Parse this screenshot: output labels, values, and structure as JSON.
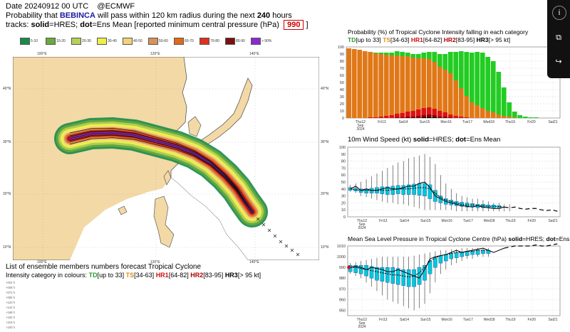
{
  "header": {
    "date_line": "Date 20240912 00 UTC",
    "source": "@ECMWF",
    "prob_prefix": "Probability that",
    "storm_name": "BEBINCA",
    "prob_mid": "will pass within 120 km radius during the next",
    "hours": "240",
    "hours_suffix": "hours",
    "tracks_prefix": "tracks:",
    "solid_label": "solid",
    "solid_def": "=HRES;",
    "dot_label": "dot",
    "dot_def": "=Ens Mean [reported minimum central pressure (hPa)",
    "pressure": "990",
    "close_bracket": "]"
  },
  "prob_legend": [
    {
      "label": "5-10",
      "color": "#1a8a4a"
    },
    {
      "label": "10-20",
      "color": "#6aaa3a"
    },
    {
      "label": "20-30",
      "color": "#b6d05a"
    },
    {
      "label": "30-40",
      "color": "#eef04a"
    },
    {
      "label": "40-50",
      "color": "#f3d27a"
    },
    {
      "label": "50-60",
      "color": "#d9925a"
    },
    {
      "label": "60-70",
      "color": "#e06a1a"
    },
    {
      "label": "70-80",
      "color": "#e03020"
    },
    {
      "label": "80-90",
      "color": "#7a1010"
    },
    {
      "label": "> 90%",
      "color": "#8a2ad0"
    }
  ],
  "map": {
    "lat_labels": [
      "40°N",
      "30°N",
      "20°N",
      "10°N"
    ],
    "lon_labels": [
      "100°E",
      "120°E",
      "140°E"
    ],
    "colors": {
      "sea": "#ffffff",
      "land": "#f2d9a6",
      "coast": "#444444"
    }
  },
  "ensemble_table": {
    "title": "List of ensemble members numbers forecast Tropical Cyclone",
    "legend_prefix": "Intensity category in colours:",
    "categories": [
      {
        "code": "TD",
        "desc": "[up to 33]",
        "color": "#2a9d2a"
      },
      {
        "code": "TS",
        "desc": "[34-63]",
        "color": "#e08a1e"
      },
      {
        "code": "HR1",
        "desc": "[64-82]",
        "color": "#cc1111"
      },
      {
        "code": "HR2",
        "desc": "[83-95]",
        "color": "#b00000"
      },
      {
        "code": "HR3",
        "desc": "[> 95 kt]",
        "color": "#000000"
      }
    ],
    "row_labels": [
      "+024 h",
      "+048 h",
      "+072 h",
      "+096 h",
      "+120 h",
      "+144 h",
      "+168 h",
      "+192 h",
      "+216 h",
      "+240 h"
    ]
  },
  "sidebar": {
    "info_icon": "i",
    "copy_icon": "⧉",
    "share_icon": "↪"
  },
  "chart_data": [
    {
      "type": "bar",
      "title_parts": {
        "prefix": "Probability (%) of Tropical Cyclone Intensity falling in each category",
        "td": "TD",
        "td_desc": "[up to 33]",
        "ts": "TS",
        "ts_desc": "[34-63]",
        "hr1": "HR1",
        "hr1_desc": "[64-82]",
        "hr2": "HR2",
        "hr2_desc": "[83-95]",
        "hr3": "HR3",
        "hr3_desc": "[> 95 kt]"
      },
      "x_tick_labels": [
        "Thu12 Sep 2024",
        "Fri13",
        "Sat14",
        "Sun15",
        "Mon16",
        "Tue17",
        "Wed18",
        "Thu19",
        "Fri20",
        "Sat21"
      ],
      "ylim": [
        0,
        100
      ],
      "y_ticks": [
        0,
        10,
        20,
        30,
        40,
        50,
        60,
        70,
        80,
        90,
        100
      ],
      "n_steps": 40,
      "colors": {
        "TD": "#22cc22",
        "TS": "#e07818",
        "HR1": "#dd1111",
        "HR2": "#880000",
        "HR3": "#000000"
      },
      "series": [
        {
          "name": "TD",
          "values": [
            0,
            0,
            0,
            0,
            0,
            1,
            2,
            3,
            4,
            6,
            6,
            5,
            5,
            6,
            8,
            10,
            14,
            18,
            22,
            30,
            40,
            52,
            62,
            70,
            75,
            78,
            76,
            72,
            60,
            40,
            20,
            8,
            4,
            2,
            1,
            1,
            0,
            0,
            0,
            0
          ]
        },
        {
          "name": "TS",
          "values": [
            98,
            97,
            96,
            94,
            92,
            90,
            88,
            86,
            84,
            82,
            80,
            78,
            75,
            72,
            70,
            68,
            66,
            62,
            60,
            58,
            50,
            40,
            30,
            22,
            18,
            14,
            10,
            8,
            5,
            3,
            2,
            1,
            0,
            0,
            0,
            0,
            0,
            0,
            0,
            0
          ]
        },
        {
          "name": "HR1",
          "values": [
            0,
            0,
            0,
            0,
            1,
            1,
            2,
            3,
            4,
            5,
            6,
            7,
            8,
            9,
            10,
            10,
            9,
            8,
            6,
            4,
            3,
            2,
            1,
            0,
            0,
            0,
            0,
            0,
            0,
            0,
            0,
            0,
            0,
            0,
            0,
            0,
            0,
            0,
            0,
            0
          ]
        },
        {
          "name": "HR2",
          "values": [
            0,
            0,
            0,
            0,
            0,
            0,
            0,
            0,
            0,
            1,
            1,
            2,
            2,
            3,
            3,
            4,
            3,
            2,
            2,
            1,
            0,
            0,
            0,
            0,
            0,
            0,
            0,
            0,
            0,
            0,
            0,
            0,
            0,
            0,
            0,
            0,
            0,
            0,
            0,
            0
          ]
        },
        {
          "name": "HR3",
          "values": [
            0,
            0,
            0,
            0,
            0,
            0,
            0,
            0,
            0,
            0,
            0,
            0,
            0,
            0,
            1,
            1,
            1,
            0,
            0,
            0,
            0,
            0,
            0,
            0,
            0,
            0,
            0,
            0,
            0,
            0,
            0,
            0,
            0,
            0,
            0,
            0,
            0,
            0,
            0,
            0
          ]
        }
      ]
    },
    {
      "type": "line",
      "title_parts": {
        "prefix": "10m Wind Speed (kt)",
        "solid": "solid",
        "solid_def": "=HRES;",
        "dot": "dot",
        "dot_def": "=Ens Mean"
      },
      "x_tick_labels": [
        "Thu12 Sep 2024",
        "Fri13",
        "Sat14",
        "Sun15",
        "Mon16",
        "Tue17",
        "Wed18",
        "Thu19",
        "Fri20",
        "Sat21"
      ],
      "ylim": [
        0,
        100
      ],
      "y_ticks": [
        0,
        10,
        20,
        30,
        40,
        50,
        60,
        70,
        80,
        90,
        100
      ],
      "n_steps": 40,
      "box_color": "#00c8d8",
      "ens_min": [
        36,
        34,
        30,
        28,
        26,
        24,
        22,
        20,
        20,
        18,
        18,
        16,
        14,
        12,
        10,
        10,
        10,
        10,
        10,
        10,
        8,
        8,
        8,
        8,
        8,
        8,
        8,
        8,
        8,
        8,
        8
      ],
      "box_low": [
        38,
        37,
        35,
        34,
        34,
        34,
        33,
        32,
        32,
        33,
        32,
        32,
        32,
        31,
        30,
        26,
        22,
        20,
        18,
        17,
        16,
        15,
        14,
        14,
        13,
        13,
        13,
        12,
        12
      ],
      "box_high": [
        42,
        41,
        40,
        40,
        41,
        42,
        43,
        43,
        44,
        45,
        45,
        46,
        47,
        48,
        48,
        46,
        38,
        30,
        26,
        24,
        22,
        21,
        20,
        19,
        18,
        18,
        17,
        17,
        16
      ],
      "ens_max": [
        46,
        48,
        50,
        54,
        58,
        62,
        66,
        70,
        74,
        78,
        80,
        84,
        86,
        88,
        90,
        86,
        76,
        60,
        48,
        40,
        34,
        30,
        28,
        26,
        26,
        24,
        22,
        20,
        20,
        18,
        18
      ],
      "hres": [
        40,
        44,
        38,
        40,
        38,
        38,
        40,
        42,
        40,
        40,
        42,
        44,
        44,
        48,
        50,
        42,
        30,
        26,
        22,
        20,
        18,
        16,
        15,
        14,
        16,
        14,
        13,
        12,
        12,
        14,
        13,
        14,
        12,
        11,
        12,
        12,
        10,
        9,
        10,
        8
      ],
      "ens_mean": [
        40,
        39,
        38,
        38,
        38,
        38,
        38,
        38,
        39,
        40,
        40,
        40,
        41,
        42,
        42,
        40,
        34,
        28,
        24,
        22,
        20,
        18,
        17,
        17,
        16,
        16,
        15,
        15,
        15,
        14
      ]
    },
    {
      "type": "line",
      "title_parts": {
        "prefix": "Mean Sea Level Pressure in Tropical Cyclone Centre (hPa)",
        "solid": "solid",
        "solid_def": "=HRES;",
        "dot": "dot",
        "dot_def": "=Ens Mean"
      },
      "x_tick_labels": [
        "Thu12 Sep 2024",
        "Fri13",
        "Sat14",
        "Sun15",
        "Mon16",
        "Tue17",
        "Wed18",
        "Thu19",
        "Fri20",
        "Sat21"
      ],
      "ylim": [
        945,
        1010
      ],
      "y_ticks": [
        950,
        960,
        970,
        980,
        990,
        1000,
        1010
      ],
      "n_steps": 40,
      "box_color": "#00c8d8",
      "observed": 990,
      "ens_min": [
        984,
        982,
        980,
        976,
        972,
        968,
        964,
        960,
        958,
        956,
        954,
        952,
        950,
        952,
        956,
        966,
        976,
        984,
        988,
        992,
        994,
        996,
        998,
        998,
        1000,
        1000,
        1000
      ],
      "box_low": [
        986,
        985,
        984,
        982,
        980,
        978,
        977,
        976,
        975,
        974,
        973,
        972,
        972,
        974,
        978,
        984,
        990,
        994,
        996,
        998,
        999,
        1000,
        1001,
        1002,
        1002,
        1003,
        1003
      ],
      "box_high": [
        992,
        992,
        992,
        992,
        991,
        990,
        990,
        990,
        990,
        989,
        988,
        988,
        988,
        990,
        992,
        996,
        999,
        1001,
        1002,
        1003,
        1004,
        1004,
        1005,
        1005,
        1006,
        1006,
        1006
      ],
      "ens_max": [
        994,
        995,
        996,
        997,
        998,
        999,
        1000,
        1000,
        1000,
        1000,
        1000,
        1000,
        1001,
        1002,
        1003,
        1004,
        1005,
        1006,
        1006,
        1007,
        1007,
        1008,
        1008,
        1008,
        1008,
        1008,
        1008
      ],
      "hres": [
        990,
        991,
        990,
        988,
        990,
        989,
        988,
        986,
        986,
        988,
        986,
        984,
        982,
        980,
        988,
        998,
        1000,
        1001,
        1002,
        1004,
        1006,
        1004,
        1005,
        1006,
        1007,
        1008,
        1006,
        1004,
        1006,
        1008,
        1009,
        1010,
        1010,
        1010,
        1010,
        1011,
        1010,
        1010,
        1011,
        1012
      ],
      "ens_mean": [
        990,
        990,
        989,
        988,
        987,
        986,
        985,
        984,
        983,
        983,
        982,
        981,
        982,
        985,
        990,
        996,
        999,
        1001,
        1002,
        1003,
        1004,
        1004,
        1005,
        1005,
        1006,
        1006,
        1006
      ]
    }
  ]
}
